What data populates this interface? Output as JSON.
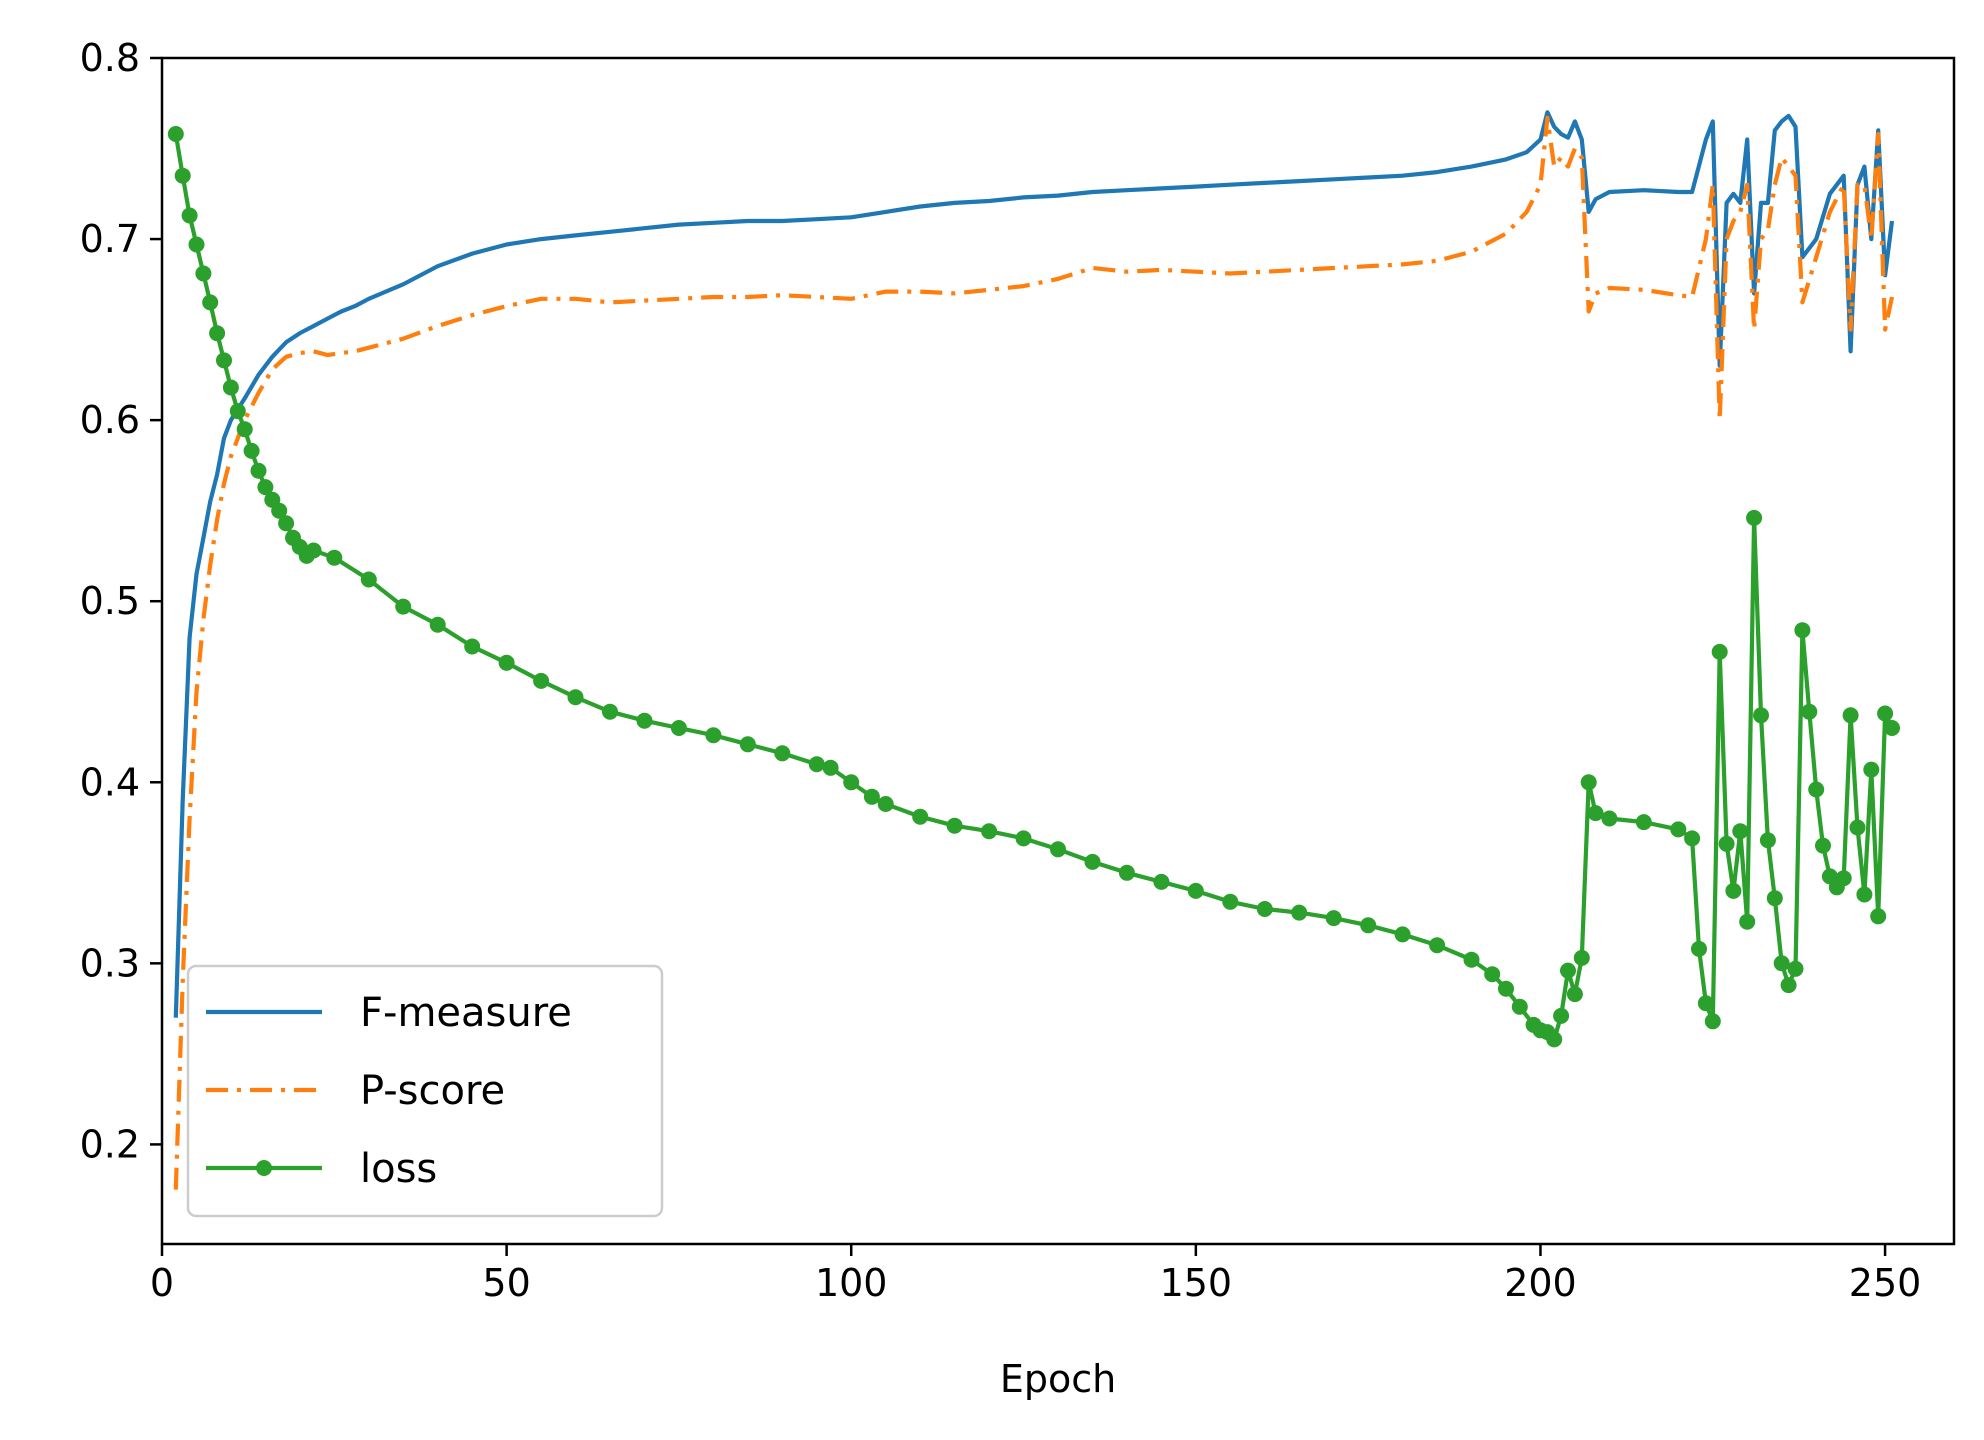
{
  "chart_data": {
    "type": "line",
    "xlabel": "Epoch",
    "ylabel": "",
    "xlim": [
      0,
      260
    ],
    "ylim": [
      0.145,
      0.8
    ],
    "xticks": [
      0,
      50,
      100,
      150,
      200,
      250
    ],
    "yticks": [
      0.2,
      0.3,
      0.4,
      0.5,
      0.6,
      0.7,
      0.8
    ],
    "xtick_labels": [
      "0",
      "50",
      "100",
      "150",
      "200",
      "250"
    ],
    "ytick_labels": [
      "0.2",
      "0.3",
      "0.4",
      "0.5",
      "0.6",
      "0.7",
      "0.8"
    ],
    "grid": false,
    "legend_position": "lower-left",
    "series": [
      {
        "name": "F-measure",
        "color": "#1f77b4",
        "style": "solid",
        "marker": "none",
        "points": [
          [
            2,
            0.27
          ],
          [
            3,
            0.39
          ],
          [
            4,
            0.48
          ],
          [
            5,
            0.515
          ],
          [
            6,
            0.535
          ],
          [
            7,
            0.555
          ],
          [
            8,
            0.57
          ],
          [
            9,
            0.59
          ],
          [
            10,
            0.6
          ],
          [
            12,
            0.612
          ],
          [
            14,
            0.625
          ],
          [
            16,
            0.635
          ],
          [
            18,
            0.643
          ],
          [
            20,
            0.648
          ],
          [
            22,
            0.652
          ],
          [
            24,
            0.656
          ],
          [
            26,
            0.66
          ],
          [
            28,
            0.663
          ],
          [
            30,
            0.667
          ],
          [
            35,
            0.675
          ],
          [
            40,
            0.685
          ],
          [
            45,
            0.692
          ],
          [
            50,
            0.697
          ],
          [
            55,
            0.7
          ],
          [
            60,
            0.702
          ],
          [
            65,
            0.704
          ],
          [
            70,
            0.706
          ],
          [
            75,
            0.708
          ],
          [
            80,
            0.709
          ],
          [
            85,
            0.71
          ],
          [
            90,
            0.71
          ],
          [
            95,
            0.711
          ],
          [
            100,
            0.712
          ],
          [
            105,
            0.715
          ],
          [
            110,
            0.718
          ],
          [
            115,
            0.72
          ],
          [
            120,
            0.721
          ],
          [
            125,
            0.723
          ],
          [
            130,
            0.724
          ],
          [
            135,
            0.726
          ],
          [
            140,
            0.727
          ],
          [
            145,
            0.728
          ],
          [
            150,
            0.729
          ],
          [
            155,
            0.73
          ],
          [
            160,
            0.731
          ],
          [
            165,
            0.732
          ],
          [
            170,
            0.733
          ],
          [
            175,
            0.734
          ],
          [
            180,
            0.735
          ],
          [
            185,
            0.737
          ],
          [
            190,
            0.74
          ],
          [
            195,
            0.744
          ],
          [
            198,
            0.748
          ],
          [
            200,
            0.755
          ],
          [
            201,
            0.77
          ],
          [
            202,
            0.762
          ],
          [
            203,
            0.758
          ],
          [
            204,
            0.756
          ],
          [
            205,
            0.765
          ],
          [
            206,
            0.755
          ],
          [
            207,
            0.715
          ],
          [
            208,
            0.722
          ],
          [
            210,
            0.726
          ],
          [
            215,
            0.727
          ],
          [
            220,
            0.726
          ],
          [
            222,
            0.726
          ],
          [
            224,
            0.755
          ],
          [
            225,
            0.765
          ],
          [
            226,
            0.63
          ],
          [
            227,
            0.72
          ],
          [
            228,
            0.725
          ],
          [
            229,
            0.72
          ],
          [
            230,
            0.755
          ],
          [
            231,
            0.67
          ],
          [
            232,
            0.72
          ],
          [
            233,
            0.72
          ],
          [
            234,
            0.76
          ],
          [
            235,
            0.765
          ],
          [
            236,
            0.768
          ],
          [
            237,
            0.762
          ],
          [
            238,
            0.69
          ],
          [
            240,
            0.7
          ],
          [
            242,
            0.725
          ],
          [
            244,
            0.735
          ],
          [
            245,
            0.638
          ],
          [
            246,
            0.73
          ],
          [
            247,
            0.74
          ],
          [
            248,
            0.7
          ],
          [
            249,
            0.76
          ],
          [
            250,
            0.68
          ],
          [
            251,
            0.71
          ]
        ]
      },
      {
        "name": "P-score",
        "color": "#ff7f0e",
        "style": "dashdot",
        "marker": "none",
        "points": [
          [
            2,
            0.175
          ],
          [
            3,
            0.29
          ],
          [
            4,
            0.38
          ],
          [
            5,
            0.45
          ],
          [
            6,
            0.49
          ],
          [
            7,
            0.52
          ],
          [
            8,
            0.545
          ],
          [
            9,
            0.565
          ],
          [
            10,
            0.58
          ],
          [
            12,
            0.6
          ],
          [
            14,
            0.615
          ],
          [
            16,
            0.628
          ],
          [
            18,
            0.635
          ],
          [
            20,
            0.637
          ],
          [
            22,
            0.638
          ],
          [
            24,
            0.636
          ],
          [
            26,
            0.637
          ],
          [
            28,
            0.638
          ],
          [
            30,
            0.64
          ],
          [
            35,
            0.645
          ],
          [
            40,
            0.652
          ],
          [
            45,
            0.658
          ],
          [
            50,
            0.663
          ],
          [
            55,
            0.667
          ],
          [
            60,
            0.667
          ],
          [
            65,
            0.665
          ],
          [
            70,
            0.666
          ],
          [
            75,
            0.667
          ],
          [
            80,
            0.668
          ],
          [
            85,
            0.668
          ],
          [
            90,
            0.669
          ],
          [
            95,
            0.668
          ],
          [
            100,
            0.667
          ],
          [
            105,
            0.671
          ],
          [
            110,
            0.671
          ],
          [
            115,
            0.67
          ],
          [
            120,
            0.672
          ],
          [
            125,
            0.674
          ],
          [
            130,
            0.678
          ],
          [
            135,
            0.684
          ],
          [
            140,
            0.682
          ],
          [
            145,
            0.683
          ],
          [
            150,
            0.682
          ],
          [
            155,
            0.681
          ],
          [
            160,
            0.682
          ],
          [
            165,
            0.683
          ],
          [
            170,
            0.684
          ],
          [
            175,
            0.685
          ],
          [
            180,
            0.686
          ],
          [
            185,
            0.688
          ],
          [
            190,
            0.693
          ],
          [
            195,
            0.703
          ],
          [
            198,
            0.715
          ],
          [
            200,
            0.73
          ],
          [
            201,
            0.767
          ],
          [
            202,
            0.74
          ],
          [
            203,
            0.745
          ],
          [
            204,
            0.74
          ],
          [
            205,
            0.75
          ],
          [
            206,
            0.745
          ],
          [
            207,
            0.66
          ],
          [
            208,
            0.67
          ],
          [
            210,
            0.673
          ],
          [
            215,
            0.672
          ],
          [
            220,
            0.669
          ],
          [
            222,
            0.668
          ],
          [
            224,
            0.7
          ],
          [
            225,
            0.73
          ],
          [
            226,
            0.6
          ],
          [
            227,
            0.7
          ],
          [
            228,
            0.71
          ],
          [
            229,
            0.715
          ],
          [
            230,
            0.73
          ],
          [
            231,
            0.65
          ],
          [
            232,
            0.7
          ],
          [
            233,
            0.705
          ],
          [
            234,
            0.73
          ],
          [
            235,
            0.745
          ],
          [
            236,
            0.74
          ],
          [
            237,
            0.735
          ],
          [
            238,
            0.665
          ],
          [
            240,
            0.69
          ],
          [
            242,
            0.715
          ],
          [
            244,
            0.73
          ],
          [
            245,
            0.65
          ],
          [
            246,
            0.73
          ],
          [
            247,
            0.73
          ],
          [
            248,
            0.7
          ],
          [
            249,
            0.758
          ],
          [
            250,
            0.65
          ],
          [
            251,
            0.668
          ]
        ]
      },
      {
        "name": "loss",
        "color": "#2ca02c",
        "style": "solid",
        "marker": "circle",
        "points": [
          [
            2,
            0.758
          ],
          [
            3,
            0.735
          ],
          [
            4,
            0.713
          ],
          [
            5,
            0.697
          ],
          [
            6,
            0.681
          ],
          [
            7,
            0.665
          ],
          [
            8,
            0.648
          ],
          [
            9,
            0.633
          ],
          [
            10,
            0.618
          ],
          [
            11,
            0.605
          ],
          [
            12,
            0.595
          ],
          [
            13,
            0.583
          ],
          [
            14,
            0.572
          ],
          [
            15,
            0.563
          ],
          [
            16,
            0.556
          ],
          [
            17,
            0.55
          ],
          [
            18,
            0.543
          ],
          [
            19,
            0.535
          ],
          [
            20,
            0.53
          ],
          [
            21,
            0.525
          ],
          [
            22,
            0.528
          ],
          [
            25,
            0.524
          ],
          [
            30,
            0.512
          ],
          [
            35,
            0.497
          ],
          [
            40,
            0.487
          ],
          [
            45,
            0.475
          ],
          [
            50,
            0.466
          ],
          [
            55,
            0.456
          ],
          [
            60,
            0.447
          ],
          [
            65,
            0.439
          ],
          [
            70,
            0.434
          ],
          [
            75,
            0.43
          ],
          [
            80,
            0.426
          ],
          [
            85,
            0.421
          ],
          [
            90,
            0.416
          ],
          [
            95,
            0.41
          ],
          [
            97,
            0.408
          ],
          [
            100,
            0.4
          ],
          [
            103,
            0.392
          ],
          [
            105,
            0.388
          ],
          [
            110,
            0.381
          ],
          [
            115,
            0.376
          ],
          [
            120,
            0.373
          ],
          [
            125,
            0.369
          ],
          [
            130,
            0.363
          ],
          [
            135,
            0.356
          ],
          [
            140,
            0.35
          ],
          [
            145,
            0.345
          ],
          [
            150,
            0.34
          ],
          [
            155,
            0.334
          ],
          [
            160,
            0.33
          ],
          [
            165,
            0.328
          ],
          [
            170,
            0.325
          ],
          [
            175,
            0.321
          ],
          [
            180,
            0.316
          ],
          [
            185,
            0.31
          ],
          [
            190,
            0.302
          ],
          [
            193,
            0.294
          ],
          [
            195,
            0.286
          ],
          [
            197,
            0.276
          ],
          [
            199,
            0.266
          ],
          [
            200,
            0.263
          ],
          [
            201,
            0.262
          ],
          [
            202,
            0.258
          ],
          [
            203,
            0.271
          ],
          [
            204,
            0.296
          ],
          [
            205,
            0.283
          ],
          [
            206,
            0.303
          ],
          [
            207,
            0.4
          ],
          [
            208,
            0.383
          ],
          [
            210,
            0.38
          ],
          [
            215,
            0.378
          ],
          [
            220,
            0.374
          ],
          [
            222,
            0.369
          ],
          [
            223,
            0.308
          ],
          [
            224,
            0.278
          ],
          [
            225,
            0.268
          ],
          [
            226,
            0.472
          ],
          [
            227,
            0.366
          ],
          [
            228,
            0.34
          ],
          [
            229,
            0.373
          ],
          [
            230,
            0.323
          ],
          [
            231,
            0.546
          ],
          [
            232,
            0.437
          ],
          [
            233,
            0.368
          ],
          [
            234,
            0.336
          ],
          [
            235,
            0.3
          ],
          [
            236,
            0.288
          ],
          [
            237,
            0.297
          ],
          [
            238,
            0.484
          ],
          [
            239,
            0.439
          ],
          [
            240,
            0.396
          ],
          [
            241,
            0.365
          ],
          [
            242,
            0.348
          ],
          [
            243,
            0.342
          ],
          [
            244,
            0.347
          ],
          [
            245,
            0.437
          ],
          [
            246,
            0.375
          ],
          [
            247,
            0.338
          ],
          [
            248,
            0.407
          ],
          [
            249,
            0.326
          ],
          [
            250,
            0.438
          ],
          [
            251,
            0.43
          ]
        ]
      }
    ]
  }
}
